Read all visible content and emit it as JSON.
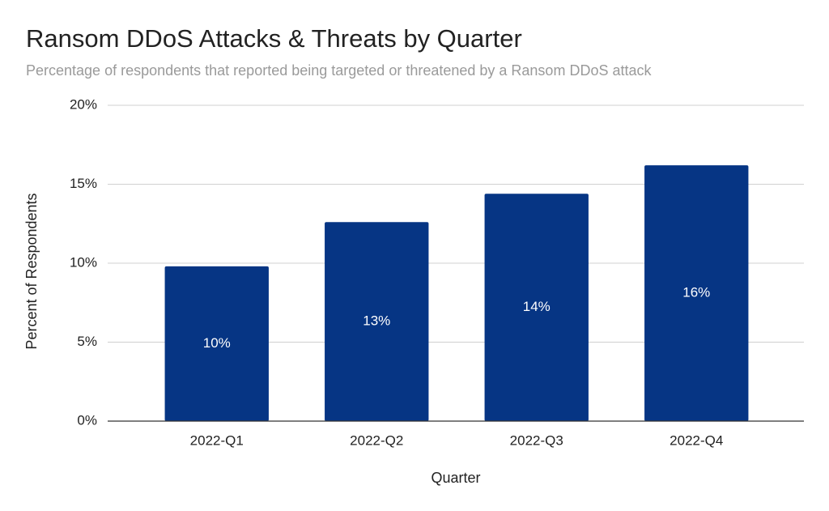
{
  "chart_data": {
    "type": "bar",
    "title": "Ransom DDoS Attacks & Threats by Quarter",
    "subtitle": "Percentage of respondents that reported being targeted or threatened by a Ransom DDoS attack",
    "x_label": "Quarter",
    "y_label": "Percent of Respondents",
    "categories": [
      "2022-Q1",
      "2022-Q2",
      "2022-Q3",
      "2022-Q4"
    ],
    "values": [
      9.8,
      12.6,
      14.4,
      16.2
    ],
    "value_labels": [
      "10%",
      "13%",
      "14%",
      "16%"
    ],
    "color": "#063584",
    "ylim": [
      0,
      20
    ],
    "yticks": [
      {
        "value": 0,
        "label": "0%"
      },
      {
        "value": 5,
        "label": "5%"
      },
      {
        "value": 10,
        "label": "10%"
      },
      {
        "value": 15,
        "label": "15%"
      },
      {
        "value": 20,
        "label": "20%"
      }
    ],
    "grid": true
  }
}
